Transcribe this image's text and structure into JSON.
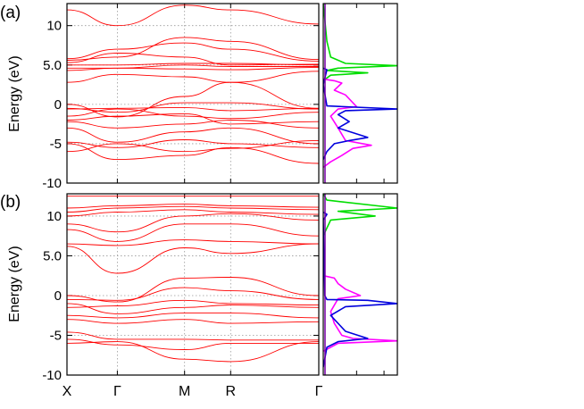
{
  "figure": {
    "panels": [
      {
        "label": "(a)",
        "ylabel": "Energy (eV)"
      },
      {
        "label": "(b)",
        "ylabel": "Energy (eV)"
      }
    ],
    "kpoint_labels": [
      "X",
      "Γ",
      "M",
      "R",
      "Γ"
    ]
  },
  "chart_data": [
    {
      "type": "line",
      "panel": "(a)",
      "kind": "band structure",
      "ylabel": "Energy (eV)",
      "ylim": [
        -10,
        12.8
      ],
      "yticks": [
        -10,
        -5,
        0,
        5.0,
        10
      ],
      "ytick_labels": [
        "-10",
        "-5",
        "0",
        "5.0",
        "10"
      ],
      "xtick_labels": [
        "X",
        "Γ",
        "M",
        "R",
        "Γ"
      ],
      "xtick_pos": [
        0,
        0.2,
        0.467,
        0.65,
        1.0
      ],
      "grid": "dotted",
      "line_color": "#ff0000",
      "bands": [
        [
          -6.0,
          -5.0,
          -6.0,
          -5.6,
          -4.6
        ],
        [
          -5.0,
          -7.0,
          -6.5,
          -5.5,
          -7.5
        ],
        [
          -4.8,
          -5.5,
          -4.5,
          -5.0,
          -5.5
        ],
        [
          -3.0,
          -4.8,
          -3.5,
          -3.0,
          -5.0
        ],
        [
          -2.2,
          -3.0,
          -2.5,
          -2.0,
          -3.0
        ],
        [
          -2.0,
          -1.5,
          -1.2,
          -2.5,
          -2.2
        ],
        [
          -1.5,
          -0.6,
          -1.5,
          -1.8,
          -1.0
        ],
        [
          -0.6,
          -0.5,
          -0.4,
          -0.8,
          -0.5
        ],
        [
          -0.5,
          -1.0,
          0.2,
          0.2,
          -0.6
        ],
        [
          0.0,
          -1.6,
          1.0,
          2.8,
          -0.5
        ],
        [
          2.8,
          3.8,
          3.5,
          2.8,
          4.2
        ],
        [
          4.3,
          4.6,
          4.5,
          4.4,
          4.7
        ],
        [
          4.6,
          4.6,
          5.0,
          4.8,
          4.8
        ],
        [
          5.0,
          5.0,
          5.2,
          5.2,
          5.0
        ],
        [
          5.3,
          6.5,
          6.0,
          5.0,
          5.1
        ],
        [
          5.8,
          7.0,
          7.8,
          7.0,
          5.5
        ],
        [
          5.6,
          6.0,
          8.5,
          8.0,
          5.7
        ],
        [
          12.0,
          10.0,
          12.6,
          12.0,
          10.2
        ]
      ],
      "pdos_series": [
        {
          "color": "#00dd00",
          "points": [
            [
              0,
              12.8
            ],
            [
              0.05,
              8.0
            ],
            [
              0.1,
              6.0
            ],
            [
              0.3,
              5.2
            ],
            [
              1.0,
              4.9
            ],
            [
              0.2,
              4.6
            ],
            [
              0.05,
              4.3
            ],
            [
              0.6,
              4.0
            ],
            [
              0.1,
              3.7
            ],
            [
              0,
              3.0
            ]
          ]
        },
        {
          "color": "#ff00ff",
          "points": [
            [
              0,
              3.2
            ],
            [
              0.15,
              3.0
            ],
            [
              0.25,
              2.7
            ],
            [
              0.15,
              1.8
            ],
            [
              0.3,
              1.2
            ],
            [
              0.45,
              -0.3
            ],
            [
              0.2,
              -0.6
            ],
            [
              0.1,
              -1.5
            ],
            [
              0.2,
              -3.0
            ],
            [
              0.3,
              -4.6
            ],
            [
              0.65,
              -5.2
            ],
            [
              0.4,
              -5.6
            ],
            [
              0.25,
              -6.5
            ],
            [
              0.1,
              -7.3
            ],
            [
              0,
              -8.0
            ]
          ]
        },
        {
          "color": "#0000dd",
          "points": [
            [
              0,
              4.6
            ],
            [
              0.05,
              4.4
            ],
            [
              0,
              2.5
            ],
            [
              0.05,
              -0.2
            ],
            [
              1.0,
              -0.6
            ],
            [
              0.3,
              -0.8
            ],
            [
              0.2,
              -1.3
            ],
            [
              0.35,
              -2.2
            ],
            [
              0.2,
              -3.0
            ],
            [
              0.6,
              -4.2
            ],
            [
              0.35,
              -4.6
            ],
            [
              0.15,
              -5.0
            ],
            [
              0.05,
              -6.0
            ],
            [
              0,
              -7.0
            ]
          ]
        }
      ]
    },
    {
      "type": "line",
      "panel": "(b)",
      "kind": "band structure",
      "ylabel": "Energy (eV)",
      "ylim": [
        -10,
        12.8
      ],
      "yticks": [
        -10,
        -5,
        0,
        5.0,
        10
      ],
      "ytick_labels": [
        "-10",
        "-5",
        "0",
        "5.0",
        "10"
      ],
      "xtick_labels": [
        "X",
        "Γ",
        "M",
        "R",
        "Γ"
      ],
      "xtick_pos": [
        0,
        0.2,
        0.467,
        0.65,
        1.0
      ],
      "grid": "dotted",
      "line_color": "#ff0000",
      "bands": [
        [
          -6.0,
          -5.8,
          -8.0,
          -8.3,
          -5.8
        ],
        [
          -5.5,
          -6.2,
          -6.8,
          -6.0,
          -6.0
        ],
        [
          -4.6,
          -5.5,
          -5.5,
          -5.6,
          -5.6
        ],
        [
          -3.0,
          -3.5,
          -3.0,
          -3.5,
          -3.3
        ],
        [
          -2.5,
          -2.8,
          -2.2,
          -2.2,
          -2.8
        ],
        [
          -1.0,
          -2.3,
          -1.5,
          -1.2,
          -1.5
        ],
        [
          -1.5,
          -1.3,
          -0.6,
          -1.0,
          -1.2
        ],
        [
          -0.5,
          -0.6,
          1.0,
          0.6,
          -0.5
        ],
        [
          0.0,
          -0.8,
          2.2,
          2.3,
          0.0
        ],
        [
          6.2,
          2.8,
          6.0,
          5.3,
          6.5
        ],
        [
          6.5,
          6.3,
          7.0,
          6.8,
          6.5
        ],
        [
          8.3,
          6.8,
          9.0,
          9.0,
          7.5
        ],
        [
          9.0,
          8.0,
          10.0,
          10.3,
          9.5
        ],
        [
          10.0,
          10.5,
          10.8,
          10.5,
          10.2
        ],
        [
          10.5,
          11.0,
          11.2,
          11.0,
          10.8
        ],
        [
          11.0,
          11.3,
          11.5,
          11.3,
          11.1
        ],
        [
          12.5,
          12.5,
          12.5,
          12.5,
          12.5
        ]
      ],
      "pdos_series": [
        {
          "color": "#00dd00",
          "points": [
            [
              0,
              12.8
            ],
            [
              0.05,
              12.0
            ],
            [
              1.0,
              11.0
            ],
            [
              0.2,
              10.6
            ],
            [
              0.7,
              10.0
            ],
            [
              0.1,
              9.5
            ],
            [
              0.05,
              8.5
            ],
            [
              0,
              7.5
            ]
          ]
        },
        {
          "color": "#ff00ff",
          "points": [
            [
              0,
              2.5
            ],
            [
              0.15,
              2.2
            ],
            [
              0.2,
              1.5
            ],
            [
              0.3,
              0.8
            ],
            [
              0.5,
              0.0
            ],
            [
              0.2,
              -0.4
            ],
            [
              0.1,
              -2.0
            ],
            [
              0.15,
              -3.5
            ],
            [
              0.25,
              -5.0
            ],
            [
              0.4,
              -5.4
            ],
            [
              1.0,
              -5.7
            ],
            [
              0.2,
              -6.0
            ],
            [
              0,
              -7.0
            ]
          ]
        },
        {
          "color": "#0000dd",
          "points": [
            [
              0,
              10.5
            ],
            [
              0.05,
              10.2
            ],
            [
              0,
              9.5
            ],
            [
              0.02,
              0.0
            ],
            [
              0.05,
              -0.5
            ],
            [
              0.6,
              -0.6
            ],
            [
              1.0,
              -1.0
            ],
            [
              0.3,
              -1.4
            ],
            [
              0.1,
              -2.5
            ],
            [
              0.3,
              -4.5
            ],
            [
              0.6,
              -5.4
            ],
            [
              0.2,
              -5.8
            ],
            [
              0.05,
              -6.5
            ],
            [
              0,
              -9.0
            ]
          ]
        }
      ]
    }
  ]
}
